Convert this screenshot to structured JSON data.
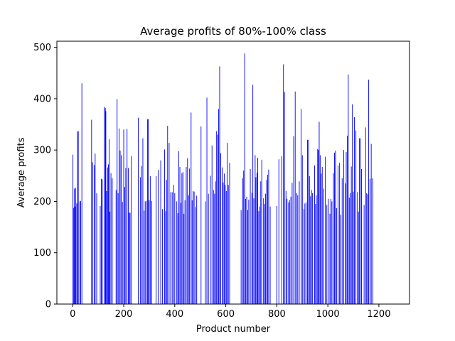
{
  "chart_data": {
    "type": "bar",
    "title": "Average profits of 80%-100% class",
    "xlabel": "Product number",
    "ylabel": "Average profits",
    "xlim": [
      -62,
      1320
    ],
    "ylim": [
      0,
      512
    ],
    "xticks": [
      0,
      200,
      400,
      600,
      800,
      1000,
      1200
    ],
    "yticks": [
      0,
      100,
      200,
      300,
      400,
      500
    ],
    "bar_color": "#0000ff",
    "grid": false,
    "legend": "none",
    "points": [
      [
        1,
        291
      ],
      [
        3,
        187
      ],
      [
        6,
        225
      ],
      [
        9,
        190
      ],
      [
        12,
        226
      ],
      [
        16,
        196
      ],
      [
        19,
        336
      ],
      [
        22,
        337
      ],
      [
        28,
        200
      ],
      [
        31,
        201
      ],
      [
        36,
        430
      ],
      [
        74,
        359
      ],
      [
        78,
        276
      ],
      [
        84,
        271
      ],
      [
        88,
        293
      ],
      [
        94,
        216
      ],
      [
        108,
        191
      ],
      [
        112,
        244
      ],
      [
        116,
        243
      ],
      [
        124,
        384
      ],
      [
        128,
        382
      ],
      [
        130,
        376
      ],
      [
        133,
        220
      ],
      [
        137,
        266
      ],
      [
        140,
        272
      ],
      [
        143,
        321
      ],
      [
        146,
        180
      ],
      [
        150,
        255
      ],
      [
        155,
        245
      ],
      [
        170,
        222
      ],
      [
        174,
        399
      ],
      [
        178,
        216
      ],
      [
        182,
        342
      ],
      [
        186,
        299
      ],
      [
        190,
        290
      ],
      [
        195,
        199
      ],
      [
        200,
        340
      ],
      [
        204,
        228
      ],
      [
        208,
        265
      ],
      [
        213,
        341
      ],
      [
        218,
        265
      ],
      [
        222,
        178
      ],
      [
        225,
        178
      ],
      [
        230,
        288
      ],
      [
        257,
        363
      ],
      [
        265,
        247
      ],
      [
        270,
        269
      ],
      [
        275,
        323
      ],
      [
        280,
        182
      ],
      [
        284,
        200
      ],
      [
        288,
        201
      ],
      [
        293,
        360
      ],
      [
        296,
        360
      ],
      [
        300,
        202
      ],
      [
        304,
        249
      ],
      [
        310,
        201
      ],
      [
        327,
        249
      ],
      [
        335,
        261
      ],
      [
        345,
        280
      ],
      [
        352,
        185
      ],
      [
        360,
        301
      ],
      [
        364,
        181
      ],
      [
        368,
        242
      ],
      [
        372,
        347
      ],
      [
        378,
        314
      ],
      [
        384,
        218
      ],
      [
        390,
        218
      ],
      [
        396,
        232
      ],
      [
        400,
        216
      ],
      [
        408,
        200
      ],
      [
        412,
        177
      ],
      [
        416,
        298
      ],
      [
        420,
        267
      ],
      [
        424,
        197
      ],
      [
        428,
        255
      ],
      [
        432,
        257
      ],
      [
        436,
        176
      ],
      [
        440,
        202
      ],
      [
        445,
        267
      ],
      [
        450,
        284
      ],
      [
        454,
        212
      ],
      [
        458,
        264
      ],
      [
        464,
        373
      ],
      [
        468,
        202
      ],
      [
        472,
        220
      ],
      [
        476,
        219
      ],
      [
        482,
        189
      ],
      [
        486,
        211
      ],
      [
        503,
        346
      ],
      [
        520,
        200
      ],
      [
        526,
        402
      ],
      [
        532,
        215
      ],
      [
        540,
        250
      ],
      [
        546,
        309
      ],
      [
        552,
        222
      ],
      [
        556,
        215
      ],
      [
        560,
        239
      ],
      [
        564,
        337
      ],
      [
        568,
        330
      ],
      [
        572,
        380
      ],
      [
        576,
        463
      ],
      [
        580,
        294
      ],
      [
        586,
        266
      ],
      [
        590,
        237
      ],
      [
        594,
        254
      ],
      [
        598,
        232
      ],
      [
        602,
        220
      ],
      [
        606,
        314
      ],
      [
        610,
        232
      ],
      [
        615,
        275
      ],
      [
        660,
        183
      ],
      [
        666,
        245
      ],
      [
        670,
        260
      ],
      [
        674,
        488
      ],
      [
        678,
        205
      ],
      [
        682,
        209
      ],
      [
        686,
        183
      ],
      [
        690,
        203
      ],
      [
        696,
        263
      ],
      [
        702,
        217
      ],
      [
        706,
        427
      ],
      [
        710,
        206
      ],
      [
        715,
        290
      ],
      [
        718,
        247
      ],
      [
        722,
        256
      ],
      [
        725,
        285
      ],
      [
        729,
        181
      ],
      [
        733,
        190
      ],
      [
        737,
        239
      ],
      [
        741,
        281
      ],
      [
        748,
        206
      ],
      [
        752,
        195
      ],
      [
        756,
        215
      ],
      [
        760,
        242
      ],
      [
        764,
        252
      ],
      [
        768,
        262
      ],
      [
        774,
        190
      ],
      [
        800,
        191
      ],
      [
        808,
        282
      ],
      [
        820,
        288
      ],
      [
        826,
        467
      ],
      [
        830,
        413
      ],
      [
        836,
        220
      ],
      [
        840,
        205
      ],
      [
        846,
        198
      ],
      [
        850,
        202
      ],
      [
        855,
        209
      ],
      [
        860,
        236
      ],
      [
        866,
        327
      ],
      [
        872,
        414
      ],
      [
        878,
        216
      ],
      [
        882,
        212
      ],
      [
        888,
        239
      ],
      [
        895,
        380
      ],
      [
        900,
        290
      ],
      [
        906,
        185
      ],
      [
        910,
        196
      ],
      [
        915,
        198
      ],
      [
        920,
        320
      ],
      [
        924,
        320
      ],
      [
        928,
        249
      ],
      [
        932,
        210
      ],
      [
        936,
        222
      ],
      [
        940,
        216
      ],
      [
        948,
        270
      ],
      [
        952,
        195
      ],
      [
        955,
        212
      ],
      [
        960,
        302
      ],
      [
        963,
        300
      ],
      [
        966,
        355
      ],
      [
        970,
        290
      ],
      [
        974,
        254
      ],
      [
        978,
        267
      ],
      [
        984,
        225
      ],
      [
        990,
        287
      ],
      [
        996,
        193
      ],
      [
        1002,
        205
      ],
      [
        1008,
        176
      ],
      [
        1012,
        205
      ],
      [
        1016,
        200
      ],
      [
        1022,
        255
      ],
      [
        1026,
        295
      ],
      [
        1030,
        299
      ],
      [
        1034,
        187
      ],
      [
        1040,
        270
      ],
      [
        1046,
        275
      ],
      [
        1050,
        174
      ],
      [
        1056,
        245
      ],
      [
        1062,
        300
      ],
      [
        1068,
        235
      ],
      [
        1072,
        296
      ],
      [
        1076,
        328
      ],
      [
        1080,
        447
      ],
      [
        1084,
        207
      ],
      [
        1088,
        216
      ],
      [
        1092,
        268
      ],
      [
        1096,
        389
      ],
      [
        1100,
        219
      ],
      [
        1104,
        364
      ],
      [
        1110,
        338
      ],
      [
        1116,
        218
      ],
      [
        1120,
        180
      ],
      [
        1124,
        323
      ],
      [
        1127,
        323
      ],
      [
        1132,
        263
      ],
      [
        1142,
        193
      ],
      [
        1148,
        344
      ],
      [
        1152,
        216
      ],
      [
        1156,
        214
      ],
      [
        1160,
        437
      ],
      [
        1165,
        244
      ],
      [
        1170,
        312
      ],
      [
        1176,
        245
      ]
    ]
  }
}
